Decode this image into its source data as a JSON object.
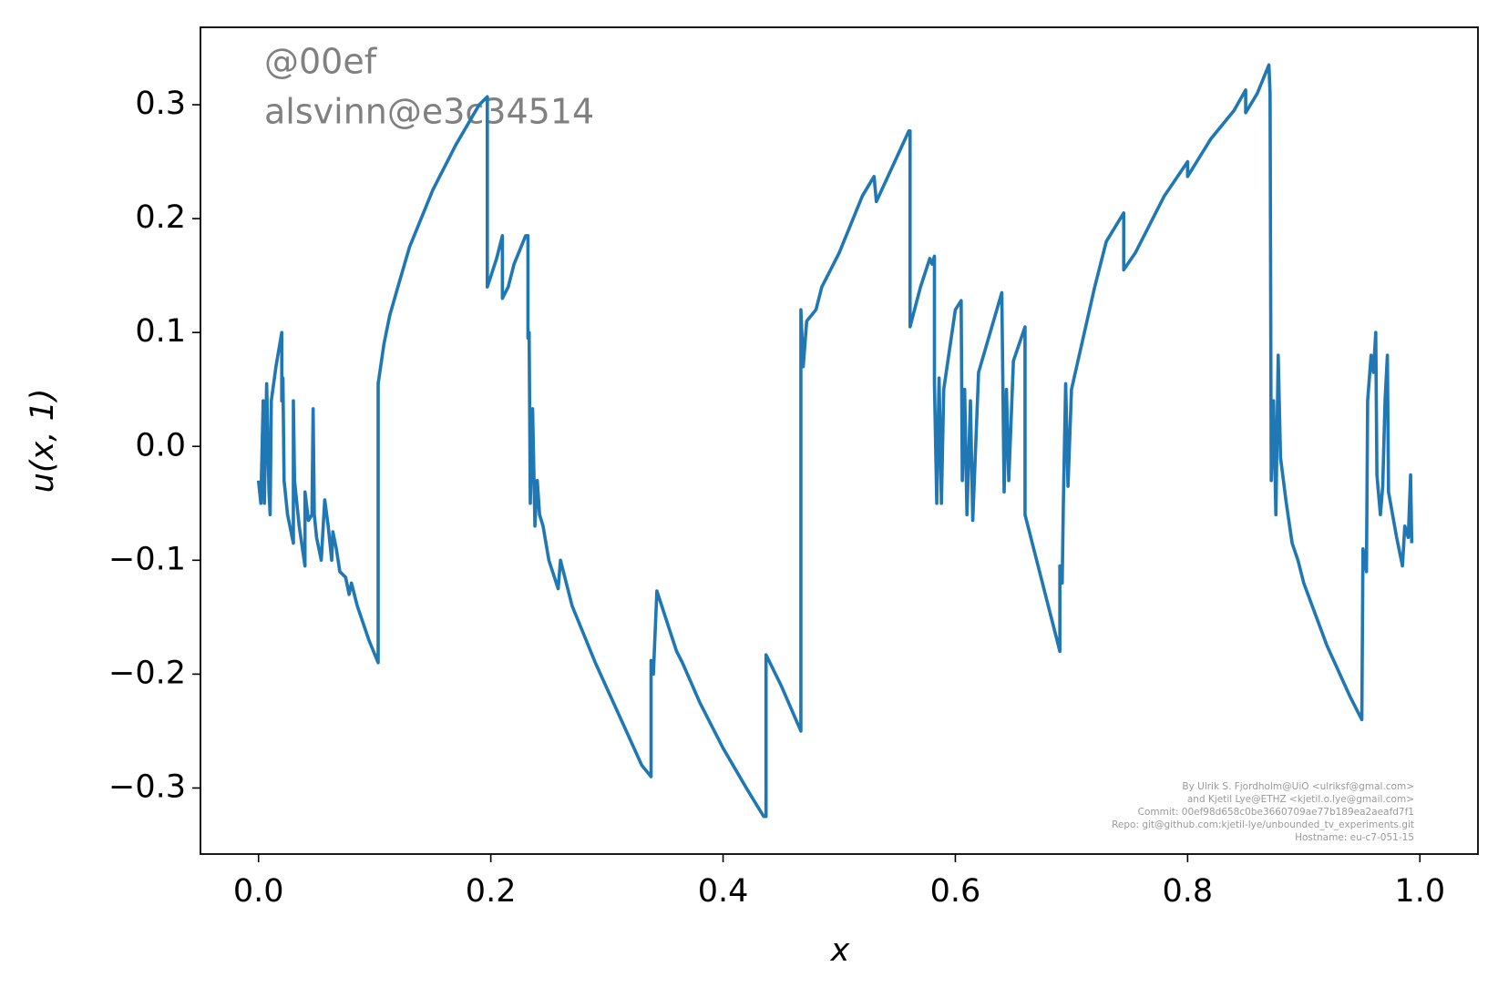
{
  "chart_data": {
    "type": "line",
    "xlabel": "x",
    "ylabel": "u(x, 1)",
    "annotations": [
      "@00ef",
      "alsvinn@e3c34514"
    ],
    "credits": [
      "By Ulrik S. Fjordholm@UiO <ulriksf@gmal.com>",
      "and Kjetil Lye@ETHZ <kjetil.o.lye@gmail.com>",
      "Commit: 00ef98d658c0be3660709ae77b189ea2aeafd7f1",
      "Repo: git@github.com:kjetil-lye/unbounded_tv_experiments.git",
      "Hostname: eu-c7-051-15"
    ],
    "xlim": [
      -0.05,
      1.05
    ],
    "ylim": [
      -0.358,
      0.368
    ],
    "xticks": [
      {
        "value": 0,
        "label": "0.0"
      },
      {
        "value": 0.2,
        "label": "0.2"
      },
      {
        "value": 0.4,
        "label": "0.4"
      },
      {
        "value": 0.6,
        "label": "0.6"
      },
      {
        "value": 0.8,
        "label": "0.8"
      },
      {
        "value": 1,
        "label": "1.0"
      }
    ],
    "yticks": [
      {
        "value": -0.3,
        "label": "−0.3"
      },
      {
        "value": -0.2,
        "label": "−0.2"
      },
      {
        "value": -0.1,
        "label": "−0.1"
      },
      {
        "value": 0,
        "label": "0.0"
      },
      {
        "value": 0.1,
        "label": "0.1"
      },
      {
        "value": 0.2,
        "label": "0.2"
      },
      {
        "value": 0.3,
        "label": "0.3"
      }
    ],
    "grid": false,
    "x": [
      0,
      0.002,
      0.004,
      0.005,
      0.007,
      0.009,
      0.01,
      0.011,
      0.015,
      0.02,
      0.02,
      0.021,
      0.022,
      0.025,
      0.03,
      0.03,
      0.031,
      0.035,
      0.04,
      0.04,
      0.043,
      0.046,
      0.047,
      0.048,
      0.05,
      0.054,
      0.057,
      0.06,
      0.063,
      0.064,
      0.067,
      0.07,
      0.075,
      0.078,
      0.08,
      0.085,
      0.095,
      0.103,
      0.103,
      0.108,
      0.113,
      0.12,
      0.13,
      0.15,
      0.17,
      0.19,
      0.197,
      0.197,
      0.205,
      0.21,
      0.21,
      0.215,
      0.22,
      0.23,
      0.232,
      0.232,
      0.233,
      0.234,
      0.236,
      0.238,
      0.24,
      0.242,
      0.245,
      0.25,
      0.258,
      0.26,
      0.27,
      0.29,
      0.31,
      0.33,
      0.338,
      0.338,
      0.34,
      0.343,
      0.36,
      0.365,
      0.38,
      0.4,
      0.42,
      0.435,
      0.437,
      0.437,
      0.45,
      0.467,
      0.467,
      0.469,
      0.472,
      0.48,
      0.485,
      0.5,
      0.52,
      0.53,
      0.532,
      0.56,
      0.561,
      0.561,
      0.57,
      0.578,
      0.58,
      0.582,
      0.582,
      0.584,
      0.586,
      0.588,
      0.59,
      0.6,
      0.605,
      0.606,
      0.608,
      0.61,
      0.613,
      0.615,
      0.62,
      0.64,
      0.642,
      0.644,
      0.646,
      0.65,
      0.66,
      0.66,
      0.67,
      0.69,
      0.69,
      0.692,
      0.693,
      0.695,
      0.697,
      0.7,
      0.72,
      0.73,
      0.745,
      0.745,
      0.755,
      0.77,
      0.78,
      0.8,
      0.8,
      0.82,
      0.84,
      0.85,
      0.85,
      0.86,
      0.87,
      0.871,
      0.872,
      0.874,
      0.876,
      0.878,
      0.88,
      0.885,
      0.89,
      0.895,
      0.9,
      0.92,
      0.94,
      0.95,
      0.951,
      0.954,
      0.955,
      0.958,
      0.96,
      0.962,
      0.963,
      0.966,
      0.968,
      0.97,
      0.972,
      0.973,
      0.98,
      0.985,
      0.987,
      0.99,
      0.992,
      0.993
    ],
    "series": [
      {
        "name": "u",
        "color": "#1f77b4",
        "values": [
          -0.03,
          -0.05,
          0.04,
          -0.05,
          0.055,
          -0.04,
          -0.06,
          0.04,
          0.07,
          0.1,
          0.04,
          0.06,
          -0.03,
          -0.06,
          -0.085,
          0.04,
          -0.03,
          -0.07,
          -0.105,
          -0.04,
          -0.065,
          -0.06,
          0.033,
          -0.06,
          -0.08,
          -0.1,
          -0.047,
          -0.07,
          -0.1,
          -0.075,
          -0.09,
          -0.11,
          -0.115,
          -0.13,
          -0.12,
          -0.14,
          -0.17,
          -0.19,
          0.055,
          0.09,
          0.115,
          0.14,
          0.175,
          0.225,
          0.265,
          0.3,
          0.307,
          0.14,
          0.165,
          0.185,
          0.13,
          0.14,
          0.16,
          0.185,
          0.185,
          0.095,
          0.1,
          -0.05,
          0.033,
          -0.07,
          -0.03,
          -0.06,
          -0.07,
          -0.1,
          -0.125,
          -0.1,
          -0.14,
          -0.19,
          -0.235,
          -0.28,
          -0.29,
          -0.188,
          -0.2,
          -0.127,
          -0.18,
          -0.19,
          -0.225,
          -0.265,
          -0.3,
          -0.325,
          -0.325,
          -0.183,
          -0.21,
          -0.25,
          0.12,
          0.07,
          0.11,
          0.12,
          0.14,
          0.17,
          0.22,
          0.237,
          0.215,
          0.277,
          0.277,
          0.105,
          0.14,
          0.165,
          0.16,
          0.167,
          0.055,
          -0.05,
          0.06,
          -0.05,
          0.05,
          0.12,
          0.128,
          -0.03,
          0.05,
          -0.06,
          0.04,
          -0.065,
          0.065,
          0.135,
          -0.04,
          0.05,
          -0.03,
          0.075,
          0.105,
          -0.06,
          -0.1,
          -0.18,
          -0.105,
          -0.12,
          -0.05,
          0.055,
          -0.035,
          0.05,
          0.14,
          0.18,
          0.205,
          0.155,
          0.17,
          0.2,
          0.22,
          0.25,
          0.237,
          0.27,
          0.295,
          0.313,
          0.293,
          0.31,
          0.335,
          0.31,
          -0.03,
          0.04,
          -0.06,
          0.08,
          -0.01,
          -0.05,
          -0.085,
          -0.1,
          -0.12,
          -0.175,
          -0.22,
          -0.24,
          -0.09,
          -0.11,
          0.04,
          0.08,
          0.065,
          0.1,
          -0.025,
          -0.06,
          -0.035,
          0.04,
          0.08,
          -0.04,
          -0.08,
          -0.105,
          -0.07,
          -0.08,
          -0.025,
          -0.085
        ]
      }
    ]
  }
}
